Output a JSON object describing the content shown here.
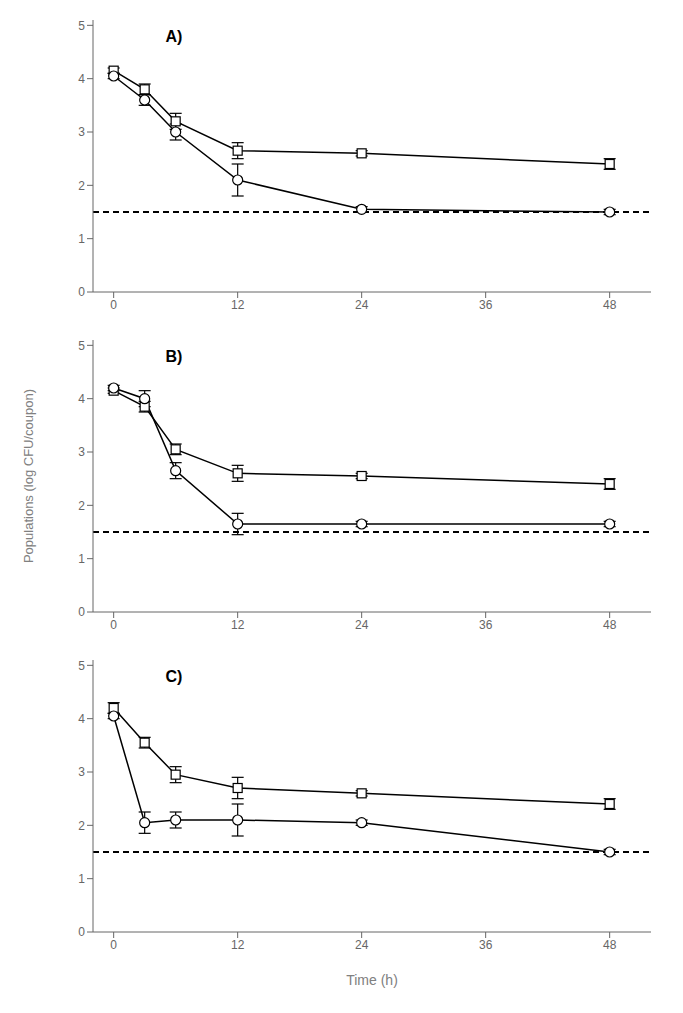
{
  "chart_data": [
    {
      "type": "line",
      "title": "A)",
      "x": [
        0,
        3,
        6,
        12,
        24,
        48
      ],
      "xlim": [
        -2,
        52
      ],
      "xticks": [
        0,
        12,
        24,
        36,
        48
      ],
      "ylim": [
        0,
        5.1
      ],
      "yticks": [
        0,
        1,
        2,
        3,
        4,
        5
      ],
      "grid": false,
      "reference_lines": [
        {
          "y": 1.5,
          "color": "black",
          "line_style": "dashed"
        }
      ],
      "series": [
        {
          "color": "black",
          "marker": "square",
          "line_style": "solid",
          "values": [
            4.15,
            3.8,
            3.2,
            2.65,
            2.6,
            2.4
          ],
          "yerr": [
            0.05,
            0.1,
            0.15,
            0.15,
            0.05,
            0.1
          ]
        },
        {
          "color": "black",
          "marker": "circle",
          "line_style": "solid",
          "values": [
            4.05,
            3.6,
            3.0,
            2.1,
            1.55,
            1.5
          ],
          "yerr": [
            0.05,
            0.1,
            0.15,
            0.3,
            0.05,
            0.05
          ]
        }
      ]
    },
    {
      "type": "line",
      "title": "B)",
      "ylabel": "Populations (log CFU/coupon)",
      "x": [
        0,
        3,
        6,
        12,
        24,
        48
      ],
      "xlim": [
        -2,
        52
      ],
      "xticks": [
        0,
        12,
        24,
        36,
        48
      ],
      "ylim": [
        0,
        5.1
      ],
      "yticks": [
        0,
        1,
        2,
        3,
        4,
        5
      ],
      "grid": false,
      "reference_lines": [
        {
          "y": 1.5,
          "color": "black",
          "line_style": "dashed"
        }
      ],
      "series": [
        {
          "color": "black",
          "marker": "square",
          "line_style": "solid",
          "values": [
            4.15,
            3.85,
            3.05,
            2.6,
            2.55,
            2.4
          ],
          "yerr": [
            0.05,
            0.1,
            0.1,
            0.15,
            0.05,
            0.1
          ]
        },
        {
          "color": "black",
          "marker": "circle",
          "line_style": "solid",
          "values": [
            4.2,
            4.0,
            2.65,
            1.65,
            1.65,
            1.65
          ],
          "yerr": [
            0.05,
            0.15,
            0.15,
            0.2,
            0.05,
            0.05
          ]
        }
      ]
    },
    {
      "type": "line",
      "title": "C)",
      "xlabel": "Time (h)",
      "x": [
        0,
        3,
        6,
        12,
        24,
        48
      ],
      "xlim": [
        -2,
        52
      ],
      "xticks": [
        0,
        12,
        24,
        36,
        48
      ],
      "ylim": [
        0,
        5.1
      ],
      "yticks": [
        0,
        1,
        2,
        3,
        4,
        5
      ],
      "grid": false,
      "reference_lines": [
        {
          "y": 1.5,
          "color": "black",
          "line_style": "dashed"
        }
      ],
      "series": [
        {
          "color": "black",
          "marker": "square",
          "line_style": "solid",
          "values": [
            4.2,
            3.55,
            2.95,
            2.7,
            2.6,
            2.4
          ],
          "yerr": [
            0.1,
            0.1,
            0.15,
            0.2,
            0.05,
            0.1
          ]
        },
        {
          "color": "black",
          "marker": "circle",
          "line_style": "solid",
          "values": [
            4.05,
            2.05,
            2.1,
            2.1,
            2.05,
            1.5
          ],
          "yerr": [
            0.05,
            0.2,
            0.15,
            0.3,
            0.05,
            0.05
          ]
        }
      ]
    }
  ]
}
